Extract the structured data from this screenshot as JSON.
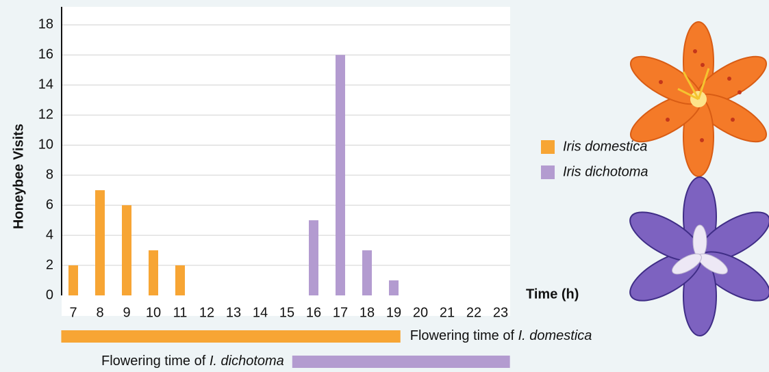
{
  "chart_data": {
    "type": "bar",
    "y_label": "Honeybee Visits",
    "x_label": "Time (h)",
    "categories": [
      "7",
      "8",
      "9",
      "10",
      "11",
      "12",
      "13",
      "14",
      "15",
      "16",
      "17",
      "18",
      "19",
      "20",
      "21",
      "22",
      "23"
    ],
    "series": [
      {
        "name": "Iris domestica",
        "color": "#f7a534",
        "values": [
          2,
          7,
          6,
          3,
          2,
          0,
          0,
          0,
          0,
          0,
          0,
          0,
          0,
          0,
          0,
          0,
          0
        ]
      },
      {
        "name": "Iris dichotoma",
        "color": "#b39bd0",
        "values": [
          0,
          0,
          0,
          0,
          0,
          0,
          0,
          0,
          0,
          5,
          16,
          3,
          1,
          0,
          0,
          0,
          0
        ]
      }
    ],
    "ylim": [
      0,
      19.2
    ],
    "yticks": [
      0,
      2,
      4,
      6,
      8,
      10,
      12,
      14,
      16,
      18
    ],
    "grid": true,
    "flowering": [
      {
        "prefix": "Flowering time of ",
        "name": "I. domestica",
        "color": "#f7a534",
        "start": 6.55,
        "end": 19.25
      },
      {
        "prefix": "Flowering time of ",
        "name": "I. dichotoma",
        "color": "#b39bd0",
        "start": 15.2,
        "end": 23.35
      }
    ]
  }
}
